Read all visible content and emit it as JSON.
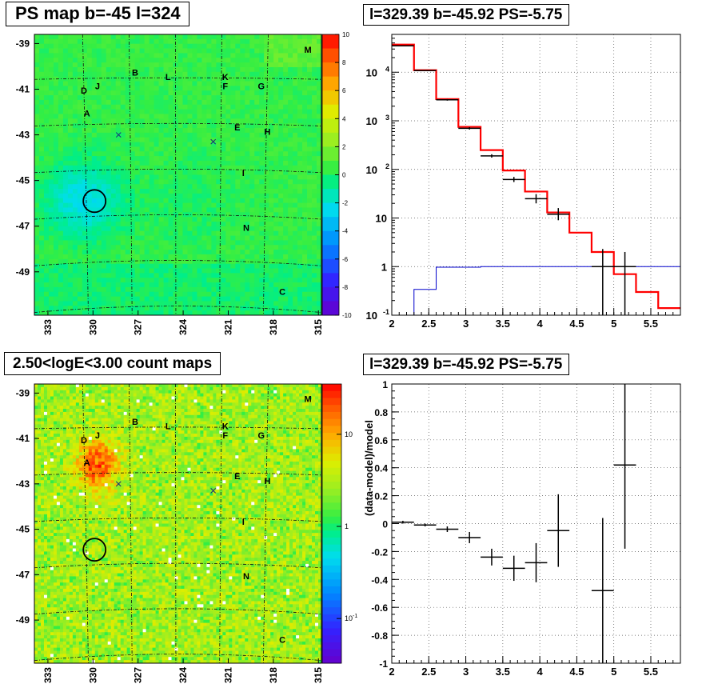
{
  "titles": {
    "ps_map": "PS map b=-45 l=324",
    "spectrum": "l=329.39 b=-45.92 PS=-5.75",
    "count_map": "2.50<logE<3.00 count maps",
    "residual": "l=329.39 b=-45.92 PS=-5.75"
  },
  "maps": {
    "lon_ticks": [
      "333",
      "330",
      "327",
      "324",
      "321",
      "318",
      "315"
    ],
    "lat_ticks": [
      "-39",
      "-41",
      "-43",
      "-45",
      "-47",
      "-49"
    ],
    "source_labels": [
      {
        "name": "M",
        "lon": 315.7,
        "lat": -39.4
      },
      {
        "name": "B",
        "lon": 327.2,
        "lat": -40.4
      },
      {
        "name": "L",
        "lon": 325.0,
        "lat": -40.6
      },
      {
        "name": "K",
        "lon": 321.2,
        "lat": -40.6
      },
      {
        "name": "F",
        "lon": 321.2,
        "lat": -41.0
      },
      {
        "name": "G",
        "lon": 318.8,
        "lat": -41.0
      },
      {
        "name": "D",
        "lon": 330.6,
        "lat": -41.2
      },
      {
        "name": "J",
        "lon": 329.7,
        "lat": -41.0
      },
      {
        "name": "A",
        "lon": 330.4,
        "lat": -42.2
      },
      {
        "name": "E",
        "lon": 320.4,
        "lat": -42.8
      },
      {
        "name": "H",
        "lon": 318.4,
        "lat": -43.0
      },
      {
        "name": "I",
        "lon": 320.0,
        "lat": -44.8
      },
      {
        "name": "N",
        "lon": 319.8,
        "lat": -47.2
      },
      {
        "name": "C",
        "lon": 317.4,
        "lat": -50.0
      }
    ],
    "crosses": [
      {
        "lon": 322.0,
        "lat": -43.3
      },
      {
        "lon": 328.3,
        "lat": -43.0
      }
    ],
    "circle": {
      "lon": 329.9,
      "lat": -45.9
    },
    "ps_colorbar_ticks": [
      "10",
      "8",
      "6",
      "4",
      "2",
      "0",
      "-2",
      "-4",
      "-6",
      "-8",
      "-10"
    ],
    "count_colorbar_ticks": [
      "10",
      "1"
    ],
    "count_colorbar_exp_label": {
      "base": "10",
      "exp": "-1"
    }
  },
  "chart_data": [
    {
      "type": "line",
      "name": "spectrum",
      "title": "l=329.39 b=-45.92 PS=-5.75",
      "xlabel": "",
      "ylabel": "",
      "y_scale": "log",
      "xlim": [
        2,
        5.9
      ],
      "ylim": [
        0.1,
        60000
      ],
      "grid": true,
      "x_ticks": [
        "2",
        "2.5",
        "3",
        "3.5",
        "4",
        "4.5",
        "5",
        "5.5"
      ],
      "y_ticks_plain": [
        "1",
        "10"
      ],
      "y_ticks_pow": [
        {
          "base": "10",
          "exp": "-1",
          "value": 0.1
        },
        {
          "base": "10",
          "exp": "2",
          "value": 100
        },
        {
          "base": "10",
          "exp": "3",
          "value": 1000
        },
        {
          "base": "10",
          "exp": "4",
          "value": 10000
        }
      ],
      "bin_edges": [
        2.0,
        2.3,
        2.6,
        2.9,
        3.2,
        3.5,
        3.8,
        4.1,
        4.4,
        4.7,
        5.0,
        5.3,
        5.6,
        5.9
      ],
      "model_color": "#ff0000",
      "model": [
        37000,
        11000,
        2800,
        750,
        250,
        95,
        35,
        13,
        5,
        2,
        0.7,
        0.3,
        0.14
      ],
      "exposure_color": "#0000cc",
      "exposure": [
        0.1,
        0.34,
        0.97,
        0.97,
        1.0,
        1.0,
        1.0,
        1.0,
        1.0,
        1.0,
        1.0,
        1.0,
        1.0
      ],
      "data_color": "#000000",
      "data": [
        {
          "x": 2.15,
          "y": 35000,
          "yerr_low": 34500,
          "yerr_high": 35500
        },
        {
          "x": 2.45,
          "y": 10800,
          "yerr_low": 10500,
          "yerr_high": 11100
        },
        {
          "x": 2.75,
          "y": 2700,
          "yerr_low": 2600,
          "yerr_high": 2800
        },
        {
          "x": 3.05,
          "y": 700,
          "yerr_low": 660,
          "yerr_high": 740
        },
        {
          "x": 3.35,
          "y": 190,
          "yerr_low": 175,
          "yerr_high": 205
        },
        {
          "x": 3.65,
          "y": 62,
          "yerr_low": 55,
          "yerr_high": 70
        },
        {
          "x": 3.95,
          "y": 25,
          "yerr_low": 20,
          "yerr_high": 31
        },
        {
          "x": 4.25,
          "y": 12,
          "yerr_low": 9,
          "yerr_high": 16
        },
        {
          "x": 4.85,
          "y": 1.0,
          "yerr_low": 0.1,
          "yerr_high": 2.3
        },
        {
          "x": 5.15,
          "y": 1.0,
          "yerr_low": 0.1,
          "yerr_high": 2.0
        }
      ]
    },
    {
      "type": "scatter",
      "name": "residual",
      "title": "l=329.39 b=-45.92 PS=-5.75",
      "xlabel": "",
      "ylabel": "(data-model)/model",
      "xlim": [
        2,
        5.9
      ],
      "ylim": [
        -1,
        1
      ],
      "grid": true,
      "x_ticks": [
        "2",
        "2.5",
        "3",
        "3.5",
        "4",
        "4.5",
        "5",
        "5.5"
      ],
      "y_ticks": [
        "1",
        "0.8",
        "0.6",
        "0.4",
        "0.2",
        "0",
        "-0.2",
        "-0.4",
        "-0.6",
        "-0.8",
        "-1"
      ],
      "points": [
        {
          "x": 2.15,
          "y": 0.01,
          "yerr": 0.01
        },
        {
          "x": 2.45,
          "y": -0.01,
          "yerr": 0.01
        },
        {
          "x": 2.75,
          "y": -0.04,
          "yerr": 0.02
        },
        {
          "x": 3.05,
          "y": -0.1,
          "yerr": 0.04
        },
        {
          "x": 3.35,
          "y": -0.24,
          "yerr": 0.06
        },
        {
          "x": 3.65,
          "y": -0.32,
          "yerr": 0.09
        },
        {
          "x": 3.95,
          "y": -0.28,
          "yerr": 0.14
        },
        {
          "x": 4.25,
          "y": -0.05,
          "yerr": 0.26
        },
        {
          "x": 4.85,
          "y": -0.48,
          "yerr": 0.52
        },
        {
          "x": 5.15,
          "y": 0.42,
          "yerr": 0.6
        }
      ]
    }
  ]
}
